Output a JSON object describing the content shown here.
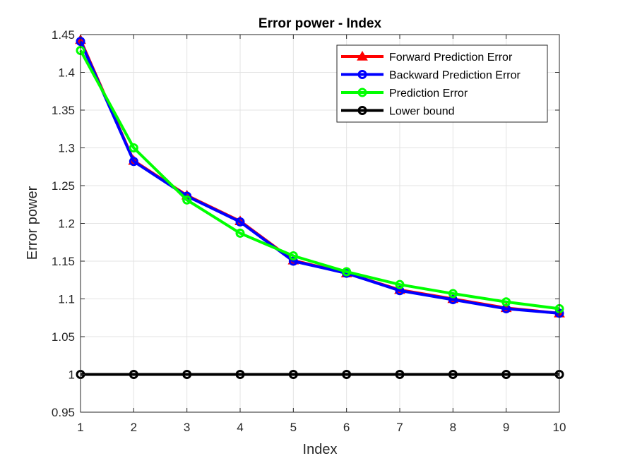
{
  "chart_data": {
    "type": "line",
    "title": "Error power - Index",
    "xlabel": "Index",
    "ylabel": "Error power",
    "xlim": [
      1,
      10
    ],
    "ylim": [
      0.95,
      1.45
    ],
    "xticks": [
      1,
      2,
      3,
      4,
      5,
      6,
      7,
      8,
      9,
      10
    ],
    "xtick_labels": [
      "1",
      "2",
      "3",
      "4",
      "5",
      "6",
      "7",
      "8",
      "9",
      "10"
    ],
    "yticks": [
      0.95,
      1,
      1.05,
      1.1,
      1.15,
      1.2,
      1.25,
      1.3,
      1.35,
      1.4,
      1.45
    ],
    "ytick_labels": [
      "0.95",
      "1",
      "1.05",
      "1.1",
      "1.15",
      "1.2",
      "1.25",
      "1.3",
      "1.35",
      "1.4",
      "1.45"
    ],
    "grid": true,
    "legend_position": "top-right",
    "x": [
      1,
      2,
      3,
      4,
      5,
      6,
      7,
      8,
      9,
      10
    ],
    "series": [
      {
        "name": "Forward Prediction Error",
        "color": "#ff0000",
        "marker": "triangle",
        "values": [
          1.443,
          1.283,
          1.237,
          1.203,
          1.151,
          1.134,
          1.112,
          1.1,
          1.088,
          1.081
        ]
      },
      {
        "name": "Backward Prediction Error",
        "color": "#0000ff",
        "marker": "circle",
        "values": [
          1.441,
          1.282,
          1.236,
          1.202,
          1.15,
          1.134,
          1.111,
          1.099,
          1.087,
          1.081
        ]
      },
      {
        "name": "Prediction Error",
        "color": "#00ff00",
        "marker": "circle",
        "values": [
          1.429,
          1.3,
          1.231,
          1.187,
          1.157,
          1.136,
          1.119,
          1.107,
          1.096,
          1.087
        ]
      },
      {
        "name": "Lower bound",
        "color": "#000000",
        "marker": "circle",
        "values": [
          1,
          1,
          1,
          1,
          1,
          1,
          1,
          1,
          1,
          1
        ]
      }
    ]
  }
}
